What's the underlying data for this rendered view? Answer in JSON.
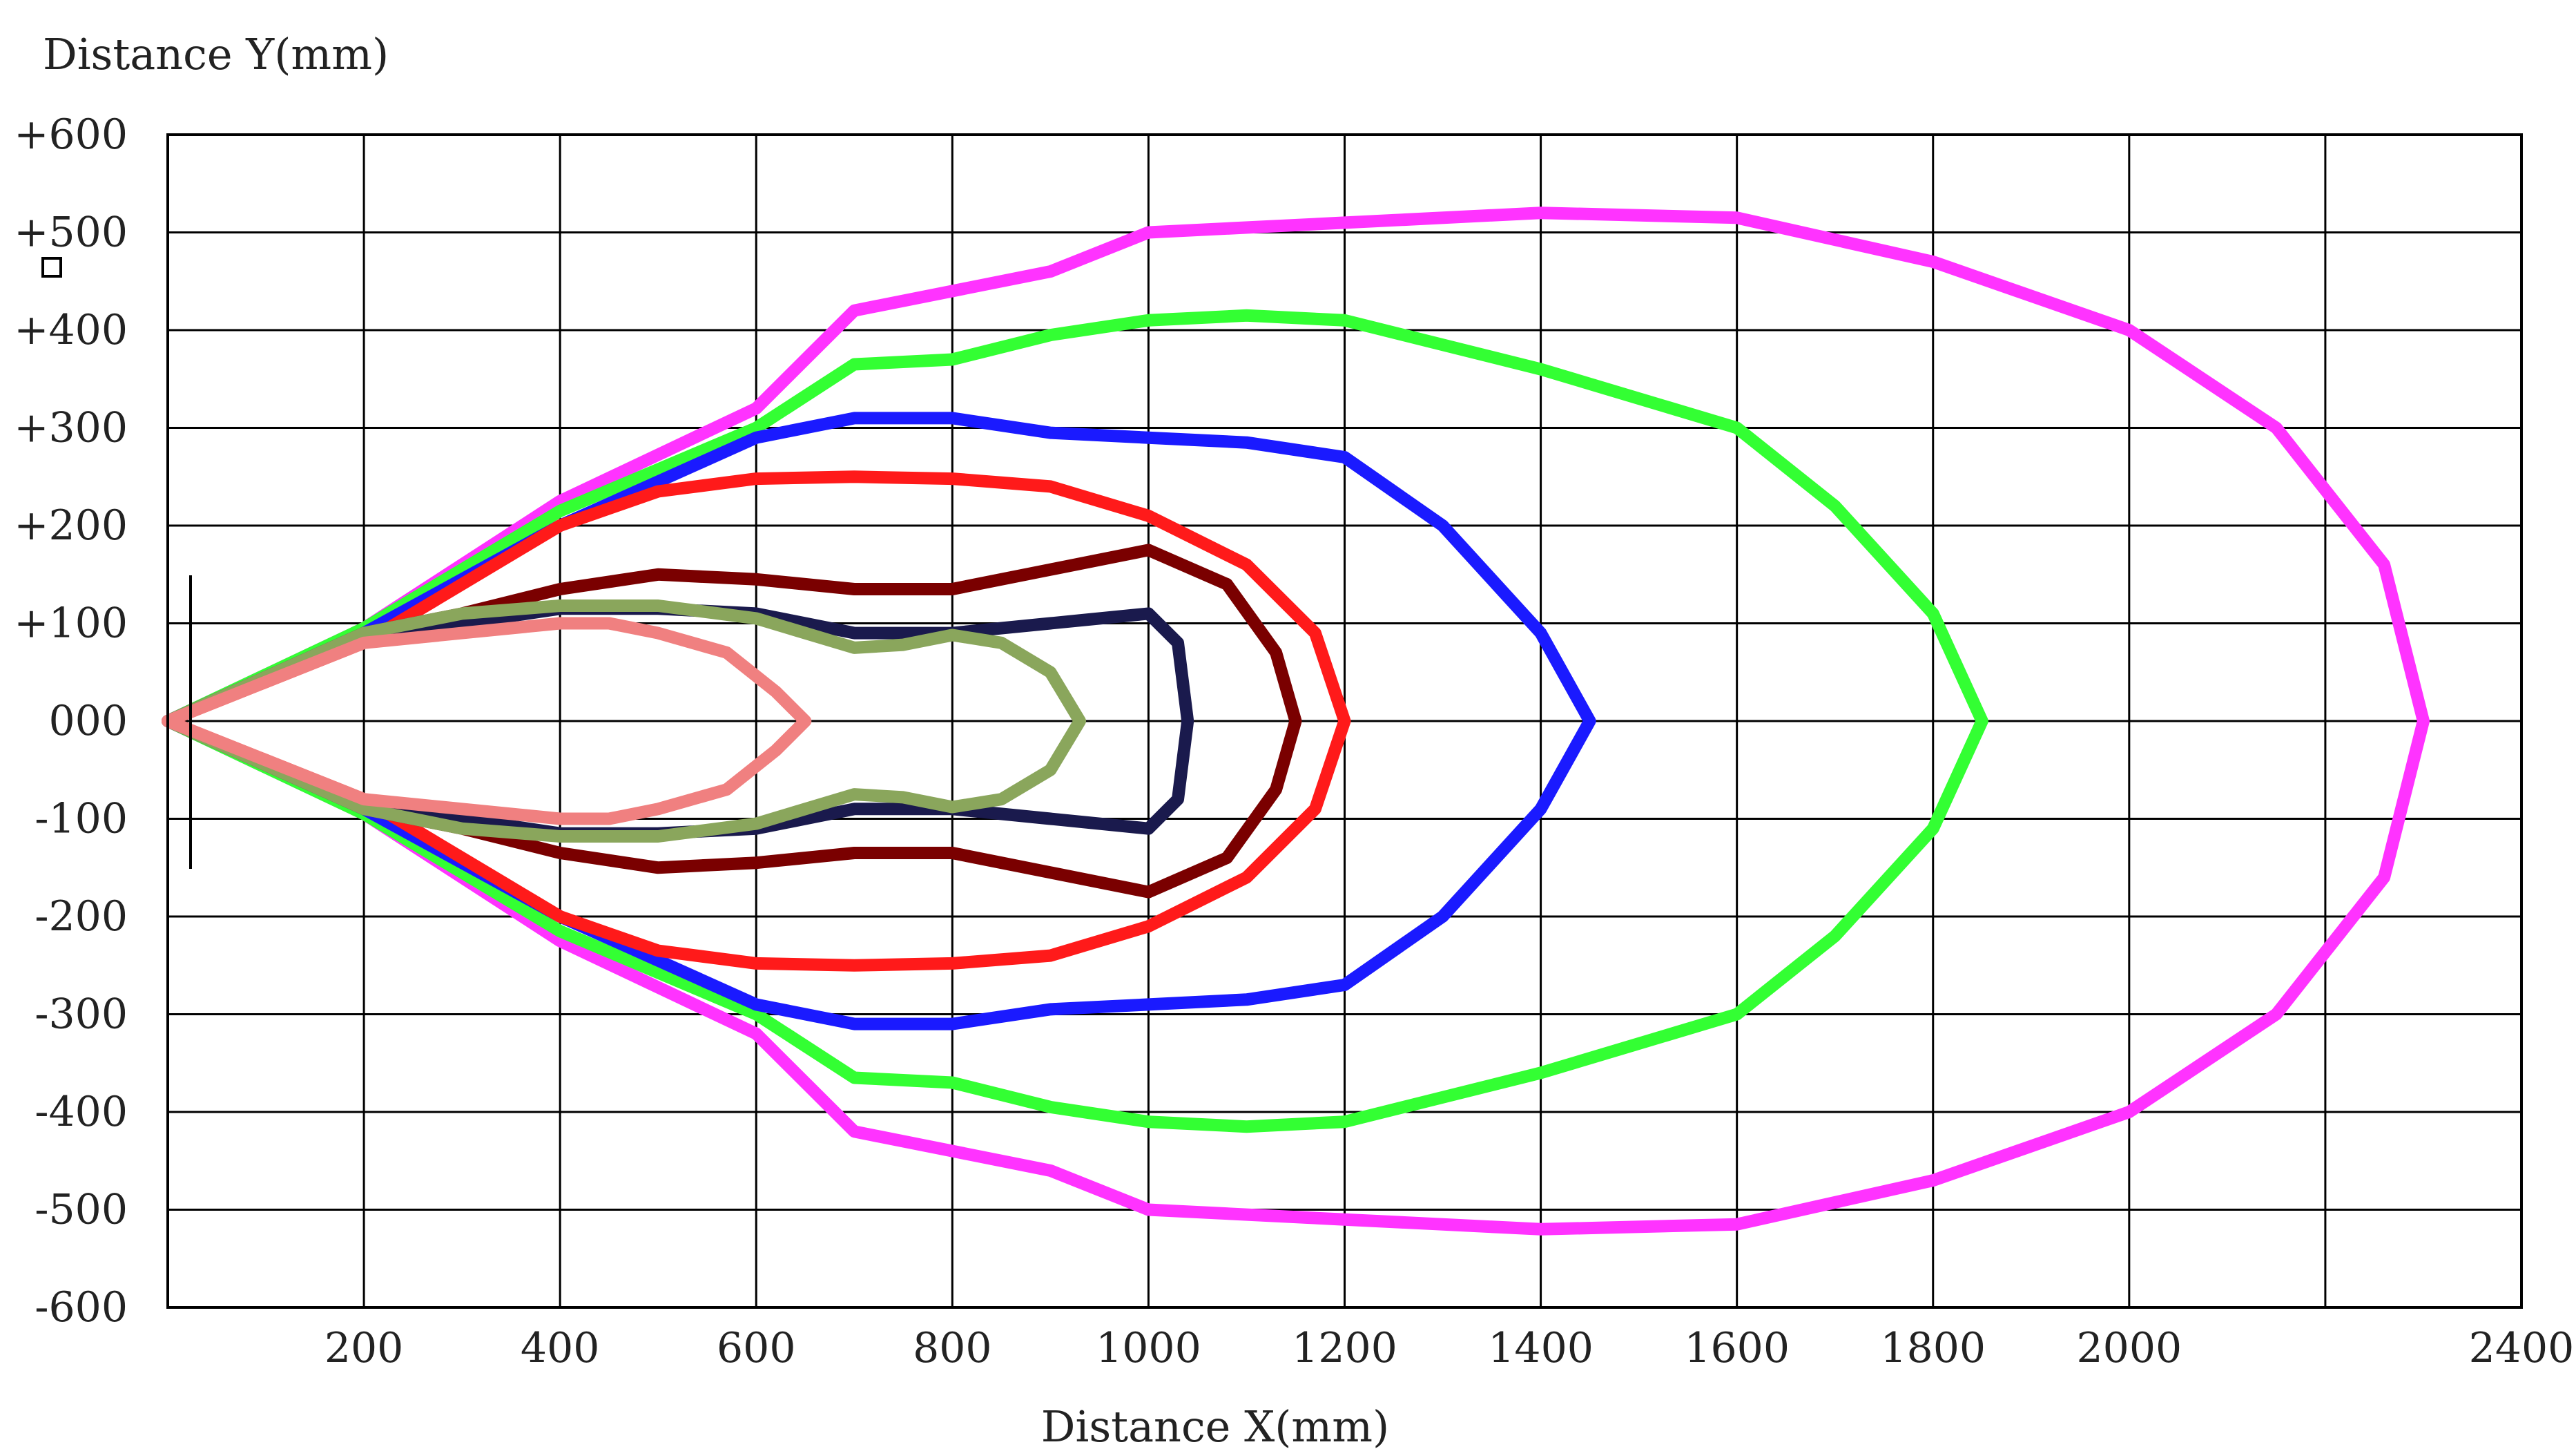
{
  "chart_data": {
    "type": "line",
    "title": "",
    "ylabel": "Distance Y(mm)",
    "xlabel": "Distance X(mm)",
    "xlim": [
      0,
      2400
    ],
    "ylim": [
      -600,
      600
    ],
    "x_ticks": [
      200,
      400,
      600,
      800,
      1000,
      1200,
      1400,
      1600,
      1800,
      2000,
      2400
    ],
    "x_grid": [
      200,
      400,
      600,
      800,
      1000,
      1200,
      1400,
      1600,
      1800,
      2000,
      2200,
      2400
    ],
    "y_ticks": [
      {
        "value": 600,
        "label": "+600"
      },
      {
        "value": 500,
        "label": "+500"
      },
      {
        "value": 400,
        "label": "+400"
      },
      {
        "value": 300,
        "label": "+300"
      },
      {
        "value": 200,
        "label": "+200"
      },
      {
        "value": 100,
        "label": "+100"
      },
      {
        "value": 0,
        "label": "000"
      },
      {
        "value": -100,
        "label": "-100"
      },
      {
        "value": -200,
        "label": "-200"
      },
      {
        "value": -300,
        "label": "-300"
      },
      {
        "value": -400,
        "label": "-400"
      },
      {
        "value": -500,
        "label": "-500"
      },
      {
        "value": -600,
        "label": "-600"
      }
    ],
    "grid": true,
    "legend": "none",
    "series": [
      {
        "color": "#ff33ff",
        "upper": [
          [
            0,
            0
          ],
          [
            200,
            95
          ],
          [
            400,
            225
          ],
          [
            600,
            320
          ],
          [
            700,
            420
          ],
          [
            800,
            440
          ],
          [
            900,
            460
          ],
          [
            1000,
            500
          ],
          [
            1200,
            510
          ],
          [
            1400,
            520
          ],
          [
            1600,
            515
          ],
          [
            1800,
            470
          ],
          [
            2000,
            400
          ],
          [
            2150,
            300
          ],
          [
            2260,
            160
          ],
          [
            2300,
            0
          ]
        ]
      },
      {
        "color": "#33ff33",
        "upper": [
          [
            0,
            0
          ],
          [
            200,
            95
          ],
          [
            400,
            215
          ],
          [
            600,
            300
          ],
          [
            700,
            365
          ],
          [
            800,
            370
          ],
          [
            900,
            395
          ],
          [
            1000,
            410
          ],
          [
            1100,
            415
          ],
          [
            1200,
            410
          ],
          [
            1400,
            360
          ],
          [
            1600,
            300
          ],
          [
            1700,
            220
          ],
          [
            1800,
            110
          ],
          [
            1850,
            0
          ]
        ]
      },
      {
        "color": "#1a1aff",
        "upper": [
          [
            0,
            0
          ],
          [
            200,
            90
          ],
          [
            400,
            200
          ],
          [
            600,
            290
          ],
          [
            700,
            310
          ],
          [
            800,
            310
          ],
          [
            900,
            295
          ],
          [
            1000,
            290
          ],
          [
            1100,
            285
          ],
          [
            1200,
            270
          ],
          [
            1300,
            200
          ],
          [
            1400,
            90
          ],
          [
            1450,
            0
          ]
        ]
      },
      {
        "color": "#ff1a1a",
        "upper": [
          [
            0,
            0
          ],
          [
            200,
            80
          ],
          [
            400,
            200
          ],
          [
            500,
            235
          ],
          [
            600,
            248
          ],
          [
            700,
            250
          ],
          [
            800,
            248
          ],
          [
            900,
            240
          ],
          [
            1000,
            210
          ],
          [
            1100,
            160
          ],
          [
            1170,
            90
          ],
          [
            1200,
            0
          ]
        ]
      },
      {
        "color": "#7a0000",
        "upper": [
          [
            0,
            0
          ],
          [
            200,
            90
          ],
          [
            300,
            110
          ],
          [
            400,
            135
          ],
          [
            500,
            150
          ],
          [
            600,
            145
          ],
          [
            700,
            135
          ],
          [
            800,
            135
          ],
          [
            900,
            155
          ],
          [
            1000,
            175
          ],
          [
            1080,
            140
          ],
          [
            1130,
            70
          ],
          [
            1150,
            0
          ]
        ]
      },
      {
        "color": "#1a1a4d",
        "upper": [
          [
            0,
            0
          ],
          [
            200,
            85
          ],
          [
            300,
            100
          ],
          [
            400,
            115
          ],
          [
            500,
            115
          ],
          [
            600,
            110
          ],
          [
            700,
            90
          ],
          [
            800,
            90
          ],
          [
            900,
            100
          ],
          [
            1000,
            110
          ],
          [
            1030,
            80
          ],
          [
            1040,
            0
          ]
        ]
      },
      {
        "color": "#8aa65c",
        "upper": [
          [
            0,
            0
          ],
          [
            200,
            90
          ],
          [
            300,
            110
          ],
          [
            400,
            118
          ],
          [
            500,
            118
          ],
          [
            600,
            105
          ],
          [
            700,
            75
          ],
          [
            750,
            78
          ],
          [
            800,
            88
          ],
          [
            850,
            80
          ],
          [
            900,
            50
          ],
          [
            930,
            0
          ]
        ]
      },
      {
        "color": "#f08080",
        "upper": [
          [
            0,
            0
          ],
          [
            100,
            40
          ],
          [
            200,
            80
          ],
          [
            300,
            90
          ],
          [
            400,
            100
          ],
          [
            450,
            100
          ],
          [
            500,
            90
          ],
          [
            570,
            70
          ],
          [
            620,
            30
          ],
          [
            650,
            0
          ]
        ]
      }
    ]
  }
}
